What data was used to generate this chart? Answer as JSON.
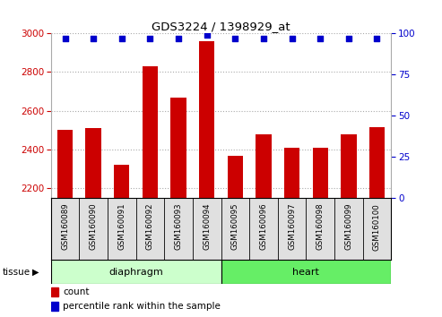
{
  "title": "GDS3224 / 1398929_at",
  "samples": [
    "GSM160089",
    "GSM160090",
    "GSM160091",
    "GSM160092",
    "GSM160093",
    "GSM160094",
    "GSM160095",
    "GSM160096",
    "GSM160097",
    "GSM160098",
    "GSM160099",
    "GSM160100"
  ],
  "counts": [
    2500,
    2510,
    2320,
    2830,
    2670,
    2960,
    2370,
    2480,
    2410,
    2410,
    2480,
    2515
  ],
  "percentiles": [
    97,
    97,
    97,
    97,
    97,
    99,
    97,
    97,
    97,
    97,
    97,
    97
  ],
  "ylim_left": [
    2150,
    3000
  ],
  "ylim_right": [
    0,
    100
  ],
  "yticks_left": [
    2200,
    2400,
    2600,
    2800,
    3000
  ],
  "yticks_right": [
    0,
    25,
    50,
    75,
    100
  ],
  "bar_color": "#cc0000",
  "dot_color": "#0000cc",
  "diaphragm_color": "#ccffcc",
  "heart_color": "#66ee66",
  "tissue_label": "tissue",
  "legend_count": "count",
  "legend_percentile": "percentile rank within the sample",
  "plot_bg": "#ffffff",
  "label_bg": "#e0e0e0",
  "n_diaphragm": 6,
  "n_heart": 6
}
